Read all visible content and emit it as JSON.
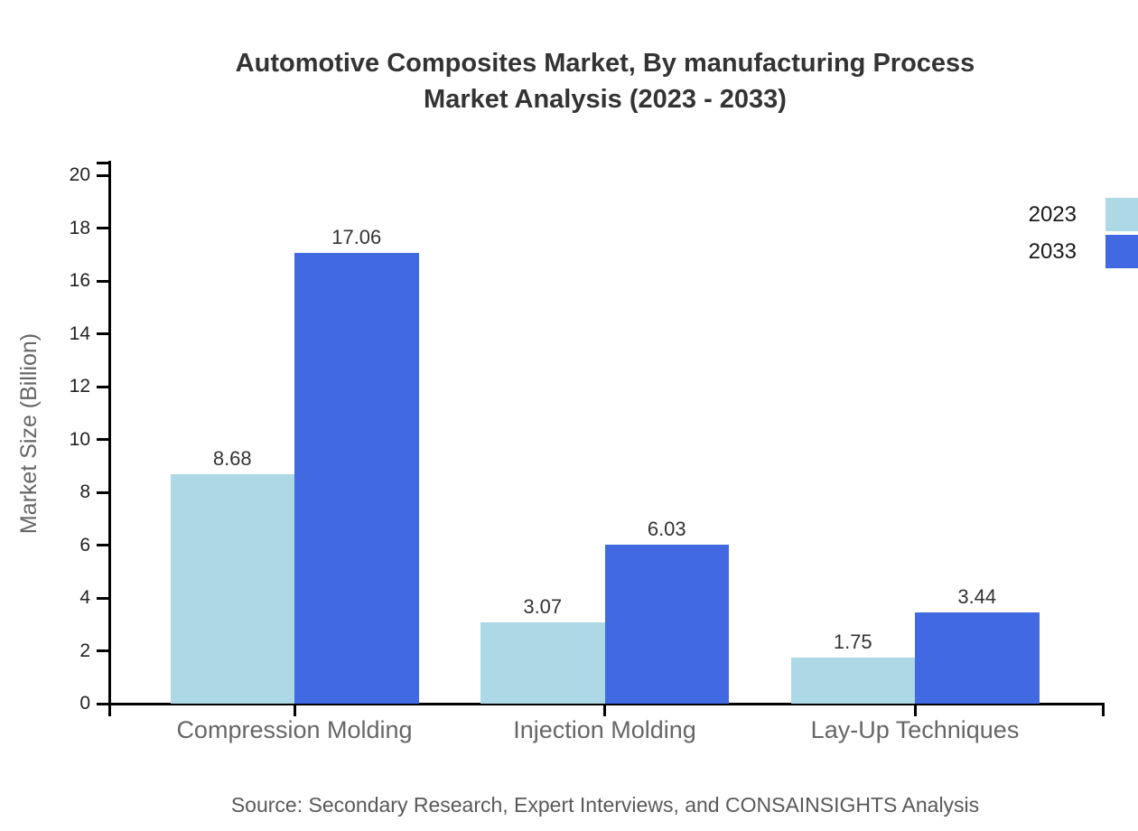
{
  "title": {
    "line1": "Automotive Composites Market, By manufacturing Process",
    "line2": "Market Analysis (2023 - 2033)"
  },
  "source": "Source: Secondary Research, Expert Interviews, and CONSAINSIGHTS Analysis",
  "chart_data": {
    "type": "bar",
    "title": "Automotive Composites Market, By manufacturing Process Market Analysis (2023 - 2033)",
    "categories": [
      "Compression Molding",
      "Injection Molding",
      "Lay-Up Techniques"
    ],
    "series": [
      {
        "name": "2023",
        "color": "#ADD8E6",
        "values": [
          8.68,
          3.07,
          1.75
        ]
      },
      {
        "name": "2033",
        "color": "#4169E1",
        "values": [
          17.06,
          6.03,
          3.44
        ]
      }
    ],
    "xlabel": "",
    "ylabel": "Market Size (Billion)",
    "ylim": [
      0,
      20
    ],
    "ytick_step": 2,
    "grid": false,
    "legend_position": "top-right",
    "value_labels": true
  },
  "colors": {
    "axis": "#000000",
    "tick_label": "#222222",
    "category_label": "#666666",
    "value_label": "#333333",
    "title": "#333333",
    "source": "#595959",
    "series_2023": "#ADD8E6",
    "series_2033": "#4169E1"
  }
}
